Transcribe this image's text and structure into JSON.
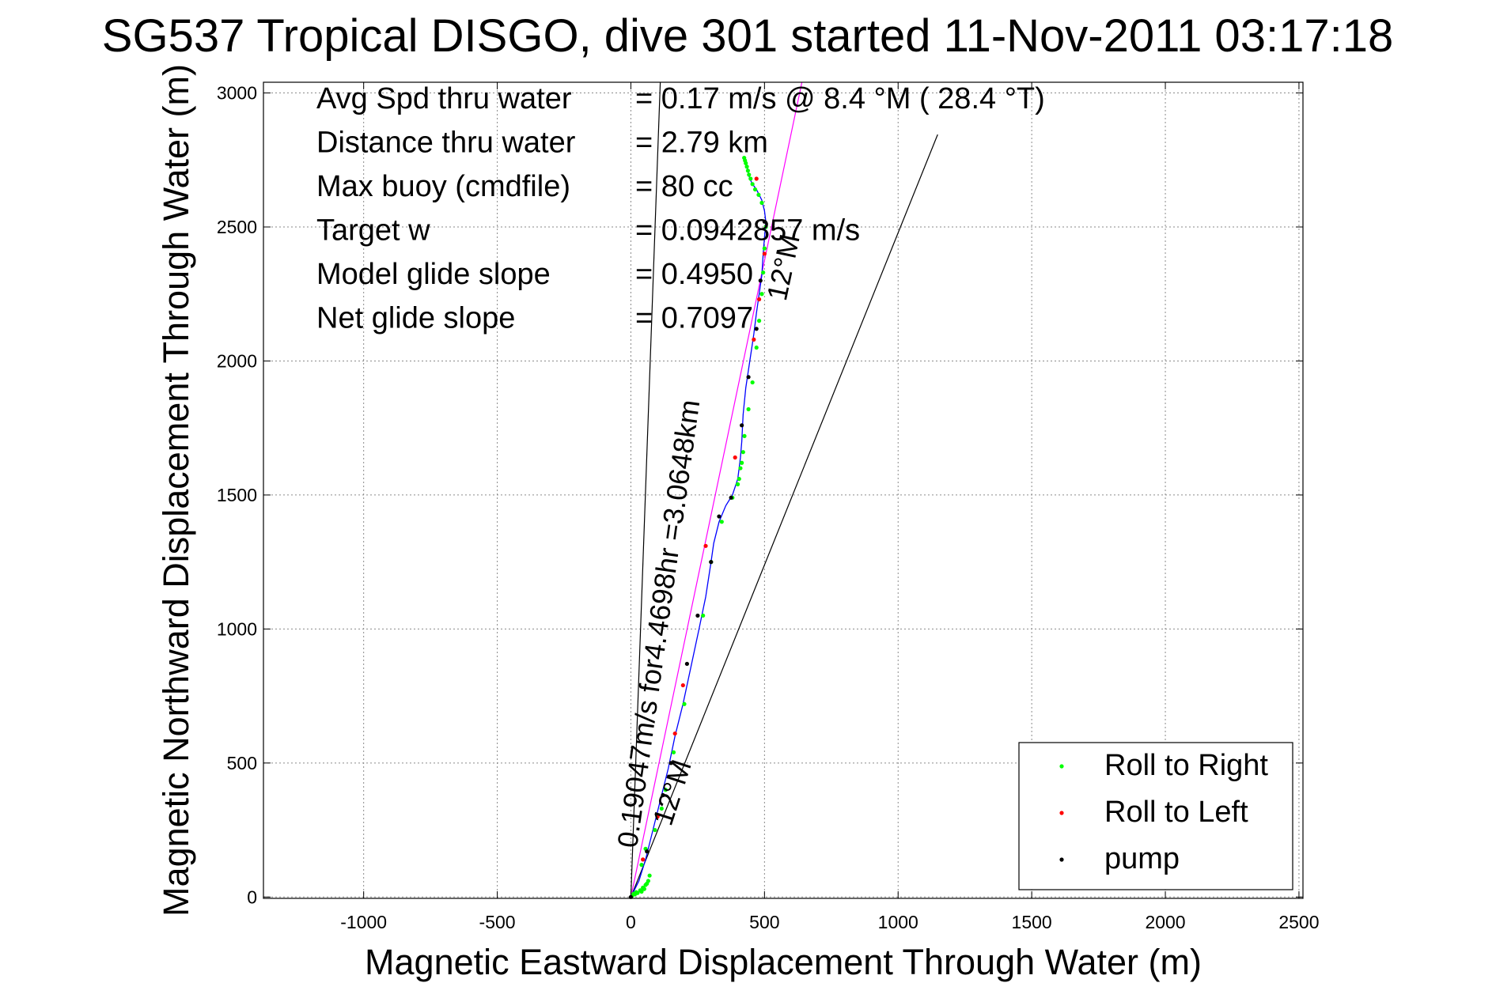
{
  "chart_data": {
    "type": "scatter",
    "title": "SG537 Tropical DISGO, dive 301 started 11-Nov-2011 03:17:18",
    "xlabel": "Magnetic Eastward Displacement Through Water (m)",
    "ylabel": "Magnetic Northward Displacement Through Water (m)",
    "xlim": [
      -1375,
      2515
    ],
    "ylim": [
      -5,
      3040
    ],
    "xticks": [
      -1000,
      -500,
      0,
      500,
      1000,
      1500,
      2000,
      2500
    ],
    "yticks": [
      0,
      500,
      1000,
      1500,
      2000,
      2500,
      3000
    ],
    "grid": true,
    "legend_position": "bottom-right",
    "stats": [
      {
        "label": "Avg Spd thru water",
        "value": "=  0.17 m/s @   8.4 °M ( 28.4 °T)"
      },
      {
        "label": "Distance thru water",
        "value": "=  2.79 km"
      },
      {
        "label": "Max buoy (cmdfile)",
        "value": "= 80 cc"
      },
      {
        "label": "Target w",
        "value": "= 0.0942857 m/s"
      },
      {
        "label": "Model glide slope",
        "value": "= 0.4950"
      },
      {
        "label": "Net glide slope",
        "value": "= 0.7097"
      }
    ],
    "annotations": [
      {
        "text": "0.19047m/s for4.4698hr =3.0648km",
        "x": 22,
        "y": 180,
        "angle_deg": 82
      },
      {
        "text": "12°M",
        "x": 150,
        "y": 260,
        "angle_deg": 72
      },
      {
        "text": "12°M",
        "x": 580,
        "y": 2220,
        "angle_deg": 78
      }
    ],
    "reference_lines": [
      {
        "name": "velocity vector",
        "color": "#000000",
        "x": [
          0,
          110
        ],
        "y": [
          0,
          3040
        ]
      },
      {
        "name": "12°M heading (lower)",
        "color": "#000000",
        "x": [
          0,
          1148
        ],
        "y": [
          0,
          2845
        ]
      },
      {
        "name": "12°M heading (upper)",
        "color": "#ff00ff",
        "x": [
          0,
          640
        ],
        "y": [
          0,
          3040
        ]
      }
    ],
    "series": [
      {
        "name": "track",
        "kind": "line",
        "color": "#0000ff",
        "x": [
          0,
          30,
          55,
          75,
          95,
          115,
          140,
          165,
          195,
          225,
          255,
          280,
          300,
          310,
          330,
          355,
          380,
          400,
          410,
          415,
          420,
          430,
          445,
          460,
          470,
          480,
          490,
          495,
          500,
          505,
          500,
          490,
          470,
          455,
          445,
          440,
          435,
          430,
          428,
          425
        ],
        "y": [
          0,
          60,
          140,
          220,
          300,
          380,
          480,
          600,
          720,
          860,
          1000,
          1120,
          1250,
          1320,
          1400,
          1460,
          1500,
          1560,
          1640,
          1700,
          1800,
          1900,
          2000,
          2100,
          2180,
          2250,
          2320,
          2400,
          2460,
          2520,
          2560,
          2600,
          2640,
          2660,
          2680,
          2700,
          2720,
          2740,
          2750,
          2760
        ]
      },
      {
        "name": "Roll to Right",
        "kind": "points",
        "color": "#00ff00",
        "x": [
          5,
          15,
          25,
          40,
          50,
          60,
          70,
          65,
          55,
          45,
          35,
          20,
          10,
          40,
          55,
          90,
          115,
          130,
          160,
          200,
          270,
          300,
          340,
          380,
          400,
          405,
          410,
          415,
          420,
          425,
          440,
          455,
          470,
          480,
          490,
          495,
          500,
          505,
          490,
          478,
          465,
          455,
          448,
          442,
          438,
          434,
          430,
          427,
          424
        ],
        "y": [
          5,
          10,
          15,
          20,
          30,
          50,
          80,
          60,
          45,
          35,
          25,
          18,
          12,
          120,
          180,
          250,
          330,
          400,
          540,
          720,
          1050,
          1250,
          1400,
          1490,
          1540,
          1560,
          1600,
          1620,
          1660,
          1720,
          1820,
          1920,
          2050,
          2150,
          2250,
          2330,
          2420,
          2500,
          2590,
          2620,
          2640,
          2660,
          2680,
          2695,
          2710,
          2725,
          2738,
          2748,
          2758
        ]
      },
      {
        "name": "Roll to Left",
        "kind": "points",
        "color": "#ff0000",
        "x": [
          45,
          100,
          165,
          195,
          280,
          390,
          460,
          480,
          500,
          470
        ],
        "y": [
          140,
          300,
          610,
          790,
          1310,
          1640,
          2080,
          2230,
          2400,
          2680
        ]
      },
      {
        "name": "pump",
        "kind": "points",
        "color": "#000000",
        "x": [
          0,
          60,
          120,
          150,
          210,
          250,
          300,
          330,
          375,
          415,
          440,
          470,
          485,
          500
        ],
        "y": [
          0,
          170,
          380,
          500,
          870,
          1050,
          1250,
          1420,
          1490,
          1760,
          1940,
          2120,
          2300,
          2520
        ]
      }
    ]
  }
}
